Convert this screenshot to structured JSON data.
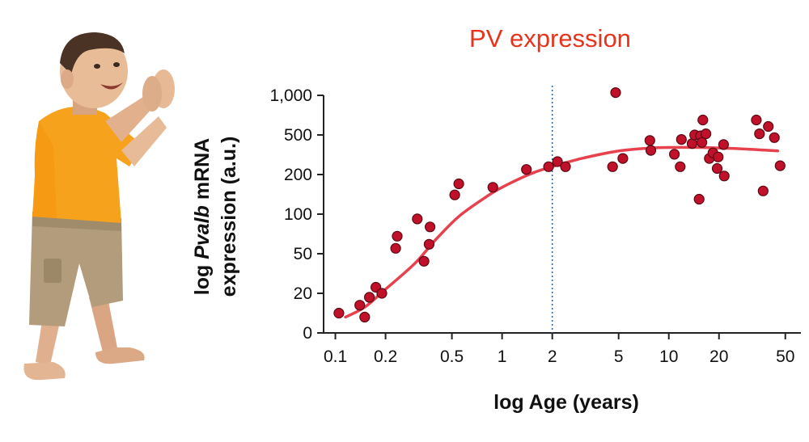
{
  "colors": {
    "title": "#e8331c",
    "fit_curve": "#e8414e",
    "points_fill": "#c0102a",
    "points_stroke": "#5a0a14",
    "reference_line": "#2f5f8f"
  },
  "figure": {
    "illustration": "toddler-photo"
  },
  "chart_data": {
    "type": "scatter",
    "title": "PV expression",
    "xlabel": "log Age (years)",
    "ylabel_parts": [
      "log ",
      "Pvalb",
      " mRNA"
    ],
    "ylabel_line2": "expression (a.u.)",
    "xscale": "log",
    "xlim": [
      0.085,
      62
    ],
    "x_ticks": [
      0.1,
      0.2,
      0.5,
      1,
      2,
      5,
      10,
      20,
      50
    ],
    "x_tick_labels": [
      "0.1",
      "0.2",
      "0.5",
      "1",
      "2",
      "5",
      "10",
      "20",
      "50"
    ],
    "y_tick_labels": [
      "0",
      "20",
      "50",
      "100",
      "200",
      "500",
      "1,000"
    ],
    "reference_line": {
      "x": 2,
      "style": "dotted"
    },
    "points": [
      {
        "x": 0.105,
        "y": 10
      },
      {
        "x": 0.14,
        "y": 14
      },
      {
        "x": 0.15,
        "y": 8
      },
      {
        "x": 0.16,
        "y": 18
      },
      {
        "x": 0.175,
        "y": 23
      },
      {
        "x": 0.19,
        "y": 20
      },
      {
        "x": 0.23,
        "y": 55
      },
      {
        "x": 0.235,
        "y": 68
      },
      {
        "x": 0.31,
        "y": 92
      },
      {
        "x": 0.34,
        "y": 42
      },
      {
        "x": 0.365,
        "y": 59
      },
      {
        "x": 0.37,
        "y": 80
      },
      {
        "x": 0.52,
        "y": 140
      },
      {
        "x": 0.55,
        "y": 170
      },
      {
        "x": 0.88,
        "y": 160
      },
      {
        "x": 1.4,
        "y": 225
      },
      {
        "x": 1.9,
        "y": 240
      },
      {
        "x": 2.15,
        "y": 270
      },
      {
        "x": 2.4,
        "y": 240
      },
      {
        "x": 4.6,
        "y": 240
      },
      {
        "x": 4.8,
        "y": 1050
      },
      {
        "x": 5.3,
        "y": 290
      },
      {
        "x": 7.7,
        "y": 440
      },
      {
        "x": 7.8,
        "y": 350
      },
      {
        "x": 10.8,
        "y": 320
      },
      {
        "x": 11.7,
        "y": 240
      },
      {
        "x": 11.9,
        "y": 450
      },
      {
        "x": 13.8,
        "y": 410
      },
      {
        "x": 14.3,
        "y": 500
      },
      {
        "x": 15.2,
        "y": 130
      },
      {
        "x": 15.5,
        "y": 490
      },
      {
        "x": 15.8,
        "y": 420
      },
      {
        "x": 16.0,
        "y": 650
      },
      {
        "x": 16.7,
        "y": 510
      },
      {
        "x": 17.5,
        "y": 290
      },
      {
        "x": 18.4,
        "y": 330
      },
      {
        "x": 19.5,
        "y": 230
      },
      {
        "x": 19.8,
        "y": 300
      },
      {
        "x": 21.3,
        "y": 400
      },
      {
        "x": 21.5,
        "y": 195
      },
      {
        "x": 33.5,
        "y": 650
      },
      {
        "x": 35.0,
        "y": 510
      },
      {
        "x": 36.8,
        "y": 150
      },
      {
        "x": 39.5,
        "y": 580
      },
      {
        "x": 43.0,
        "y": 470
      },
      {
        "x": 46.5,
        "y": 245
      }
    ],
    "fit_curve": [
      {
        "x": 0.115,
        "y": 8
      },
      {
        "x": 0.15,
        "y": 13
      },
      {
        "x": 0.2,
        "y": 22
      },
      {
        "x": 0.3,
        "y": 40
      },
      {
        "x": 0.4,
        "y": 64
      },
      {
        "x": 0.55,
        "y": 96
      },
      {
        "x": 0.8,
        "y": 135
      },
      {
        "x": 1.0,
        "y": 160
      },
      {
        "x": 1.5,
        "y": 205
      },
      {
        "x": 2.0,
        "y": 240
      },
      {
        "x": 3.0,
        "y": 290
      },
      {
        "x": 5.0,
        "y": 345
      },
      {
        "x": 8.0,
        "y": 370
      },
      {
        "x": 12.0,
        "y": 375
      },
      {
        "x": 20.0,
        "y": 370
      },
      {
        "x": 30.0,
        "y": 360
      },
      {
        "x": 45.0,
        "y": 345
      }
    ]
  }
}
